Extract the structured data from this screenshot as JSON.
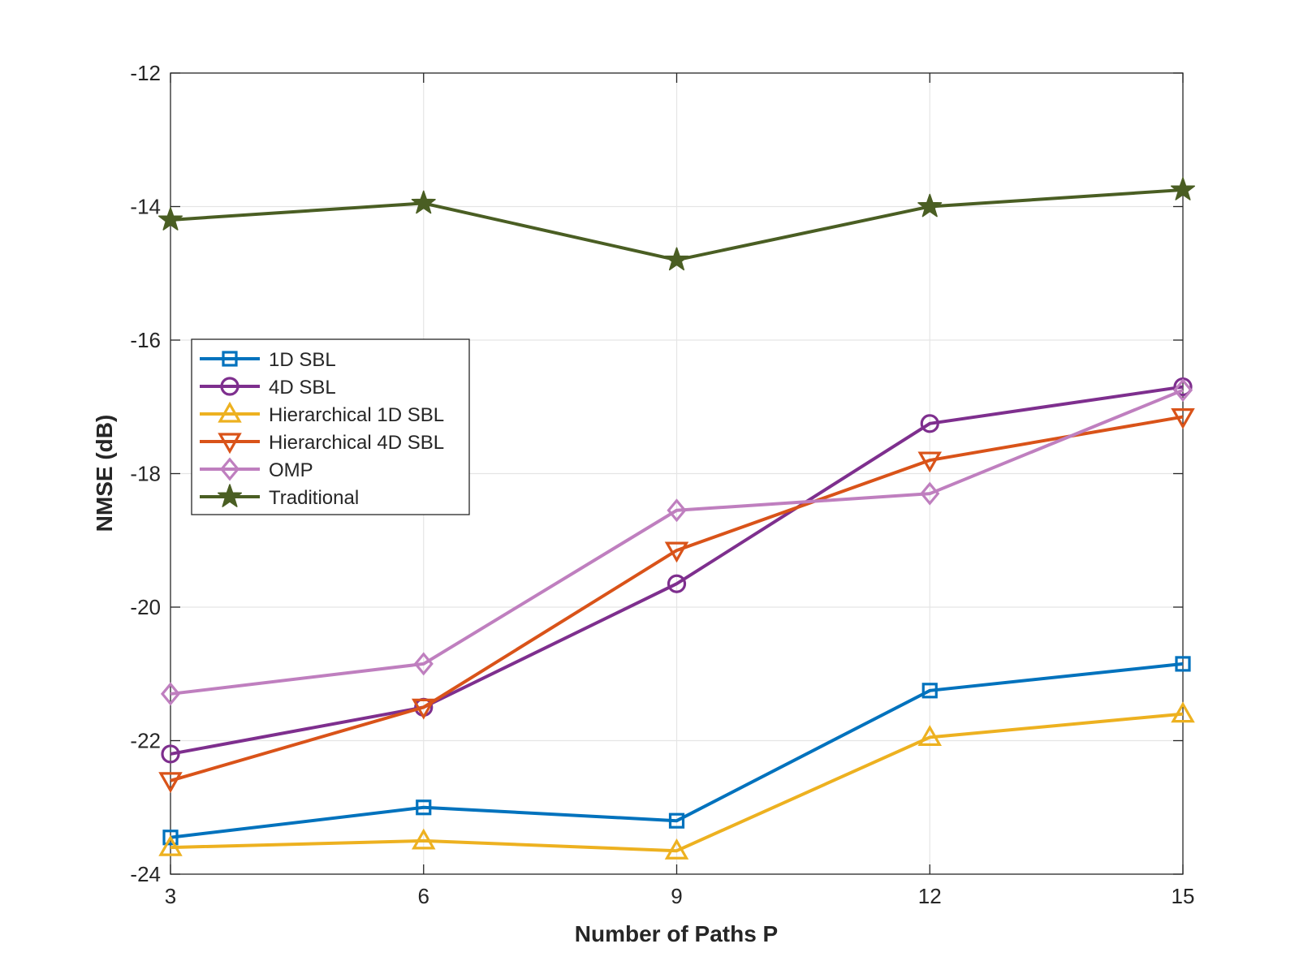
{
  "chart_data": {
    "type": "line",
    "title": "",
    "xlabel": "Number of Paths P",
    "ylabel": "NMSE (dB)",
    "x": [
      3,
      6,
      9,
      12,
      15
    ],
    "xticks": [
      "3",
      "6",
      "9",
      "12",
      "15"
    ],
    "xlim": [
      3,
      15
    ],
    "ylim": [
      -24,
      -12
    ],
    "yticks": [
      "-24",
      "-22",
      "-20",
      "-18",
      "-16",
      "-14",
      "-12"
    ],
    "grid": true,
    "legend_position": "center-left",
    "series": [
      {
        "name": "1D SBL",
        "color": "#0072BD",
        "marker": "square",
        "values": [
          -23.45,
          -23.0,
          -23.2,
          -21.25,
          -20.85
        ]
      },
      {
        "name": "4D SBL",
        "color": "#7E2F8E",
        "marker": "circle",
        "values": [
          -22.2,
          -21.5,
          -19.65,
          -17.25,
          -16.7
        ]
      },
      {
        "name": "Hierarchical 1D SBL",
        "color": "#EDB120",
        "marker": "triangle-up",
        "values": [
          -23.6,
          -23.5,
          -23.65,
          -21.95,
          -21.6
        ]
      },
      {
        "name": "Hierarchical 4D SBL",
        "color": "#D95319",
        "marker": "triangle-down",
        "values": [
          -22.6,
          -21.5,
          -19.15,
          -17.8,
          -17.15
        ]
      },
      {
        "name": "OMP",
        "color": "#BF7FBF",
        "marker": "diamond",
        "values": [
          -21.3,
          -20.85,
          -18.55,
          -18.3,
          -16.75
        ]
      },
      {
        "name": "Traditional",
        "color": "#4A5E23",
        "marker": "star",
        "values": [
          -14.2,
          -13.95,
          -14.8,
          -14.0,
          -13.75
        ]
      }
    ]
  }
}
